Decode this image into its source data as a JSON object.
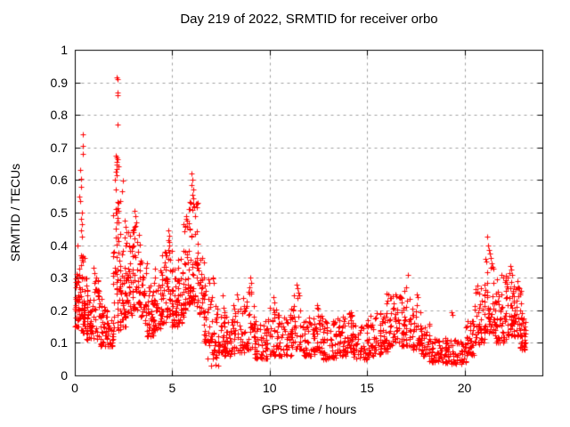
{
  "chart_data": {
    "type": "scatter",
    "title": "Day 219 of 2022, SRMTID for receiver orbo",
    "xlabel": "GPS time / hours",
    "ylabel": "SRMTID / TECUs",
    "xlim": [
      0,
      24
    ],
    "ylim": [
      0,
      1
    ],
    "xticks": [
      [
        0,
        "0"
      ],
      [
        5,
        "5"
      ],
      [
        10,
        "10"
      ],
      [
        15,
        "15"
      ],
      [
        20,
        "20"
      ]
    ],
    "yticks": [
      [
        0,
        "0"
      ],
      [
        0.1,
        "0.1"
      ],
      [
        0.2,
        "0.2"
      ],
      [
        0.3,
        "0.3"
      ],
      [
        0.4,
        "0.4"
      ],
      [
        0.5,
        "0.5"
      ],
      [
        0.6,
        "0.6"
      ],
      [
        0.7,
        "0.7"
      ],
      [
        0.8,
        "0.8"
      ],
      [
        0.9,
        "0.9"
      ],
      [
        1,
        "1"
      ]
    ],
    "grid": true,
    "legend": "none",
    "marker": "plus",
    "marker_color": "#ff0000",
    "grid_color": "#a0a0a0",
    "axis_color": "#000000",
    "background": "#ffffff",
    "prng_seed": 42,
    "series_points": [
      [
        0.41,
        0.74
      ],
      [
        0.41,
        0.705
      ],
      [
        0.42,
        0.68
      ],
      [
        0.27,
        0.63
      ],
      [
        0.3,
        0.605
      ],
      [
        0.32,
        0.58
      ],
      [
        0.25,
        0.55
      ],
      [
        0.28,
        0.535
      ],
      [
        0.35,
        0.5
      ],
      [
        0.3,
        0.48
      ],
      [
        0.38,
        0.465
      ],
      [
        0.33,
        0.445
      ],
      [
        0.36,
        0.425
      ],
      [
        0.98,
        0.33
      ],
      [
        1.02,
        0.315
      ],
      [
        1.08,
        0.3
      ],
      [
        2.17,
        0.915
      ],
      [
        2.2,
        0.91
      ],
      [
        2.18,
        0.87
      ],
      [
        2.21,
        0.862
      ],
      [
        2.19,
        0.77
      ],
      [
        2.12,
        0.675
      ],
      [
        2.16,
        0.67
      ],
      [
        2.2,
        0.664
      ],
      [
        2.13,
        0.656
      ],
      [
        2.17,
        0.648
      ],
      [
        2.22,
        0.643
      ],
      [
        2.15,
        0.635
      ],
      [
        2.1,
        0.625
      ],
      [
        2.14,
        0.615
      ],
      [
        2.05,
        0.6
      ],
      [
        2.47,
        0.598
      ],
      [
        2.12,
        0.57
      ],
      [
        2.4,
        0.565
      ],
      [
        2.25,
        0.53
      ],
      [
        2.08,
        0.51
      ],
      [
        2.1,
        0.5
      ],
      [
        2.57,
        0.475
      ],
      [
        2.62,
        0.455
      ],
      [
        2.66,
        0.44
      ],
      [
        3.05,
        0.505
      ],
      [
        3.1,
        0.49
      ],
      [
        3.14,
        0.47
      ],
      [
        3.08,
        0.455
      ],
      [
        4.82,
        0.445
      ],
      [
        4.86,
        0.43
      ],
      [
        4.8,
        0.415
      ],
      [
        4.84,
        0.4
      ],
      [
        5.7,
        0.49
      ],
      [
        5.74,
        0.475
      ],
      [
        5.65,
        0.46
      ],
      [
        5.78,
        0.455
      ],
      [
        6.0,
        0.62
      ],
      [
        6.04,
        0.6
      ],
      [
        5.98,
        0.585
      ],
      [
        6.07,
        0.57
      ],
      [
        6.02,
        0.555
      ],
      [
        6.1,
        0.545
      ],
      [
        5.95,
        0.53
      ],
      [
        6.13,
        0.52
      ],
      [
        6.05,
        0.508
      ],
      [
        7.1,
        0.3
      ],
      [
        7.15,
        0.285
      ],
      [
        7.6,
        0.245
      ],
      [
        8.3,
        0.25
      ],
      [
        8.35,
        0.235
      ],
      [
        9.0,
        0.3
      ],
      [
        9.04,
        0.285
      ],
      [
        8.95,
        0.27
      ],
      [
        10.2,
        0.24
      ],
      [
        10.25,
        0.225
      ],
      [
        11.38,
        0.28
      ],
      [
        11.42,
        0.268
      ],
      [
        11.46,
        0.255
      ],
      [
        12.45,
        0.215
      ],
      [
        12.5,
        0.205
      ],
      [
        13.3,
        0.16
      ],
      [
        14.15,
        0.195
      ],
      [
        14.2,
        0.185
      ],
      [
        15.5,
        0.19
      ],
      [
        16.1,
        0.25
      ],
      [
        16.16,
        0.238
      ],
      [
        16.45,
        0.25
      ],
      [
        16.9,
        0.26
      ],
      [
        17.1,
        0.31
      ],
      [
        17.0,
        0.27
      ],
      [
        17.55,
        0.25
      ],
      [
        17.6,
        0.24
      ],
      [
        19.35,
        0.195
      ],
      [
        19.4,
        0.185
      ],
      [
        21.16,
        0.425
      ],
      [
        21.2,
        0.4
      ],
      [
        21.26,
        0.385
      ],
      [
        21.3,
        0.374
      ],
      [
        21.35,
        0.36
      ],
      [
        21.12,
        0.35
      ],
      [
        21.4,
        0.345
      ],
      [
        21.45,
        0.334
      ],
      [
        21.9,
        0.31
      ],
      [
        22.0,
        0.3
      ],
      [
        22.3,
        0.315
      ],
      [
        22.35,
        0.335
      ],
      [
        22.4,
        0.325
      ],
      [
        22.45,
        0.31
      ],
      [
        22.7,
        0.29
      ],
      [
        22.75,
        0.27
      ],
      [
        22.85,
        0.25
      ],
      [
        22.9,
        0.22
      ],
      [
        22.95,
        0.19
      ],
      [
        23.0,
        0.16
      ],
      [
        23.05,
        0.13
      ],
      [
        23.1,
        0.11
      ]
    ],
    "density_bands": [
      [
        0.0,
        0.2,
        0.15,
        0.33,
        22
      ],
      [
        0.1,
        0.5,
        0.17,
        0.4,
        45
      ],
      [
        0.3,
        0.7,
        0.13,
        0.3,
        35
      ],
      [
        0.6,
        1.0,
        0.11,
        0.26,
        32
      ],
      [
        0.9,
        1.4,
        0.11,
        0.3,
        35
      ],
      [
        1.3,
        1.7,
        0.09,
        0.22,
        35
      ],
      [
        1.6,
        2.0,
        0.09,
        0.2,
        30
      ],
      [
        1.95,
        2.35,
        0.14,
        0.55,
        55
      ],
      [
        2.3,
        2.6,
        0.15,
        0.45,
        35
      ],
      [
        2.55,
        3.0,
        0.18,
        0.44,
        45
      ],
      [
        2.95,
        3.35,
        0.2,
        0.46,
        40
      ],
      [
        3.3,
        3.7,
        0.16,
        0.36,
        35
      ],
      [
        3.6,
        4.1,
        0.12,
        0.28,
        40
      ],
      [
        4.0,
        4.45,
        0.14,
        0.33,
        35
      ],
      [
        4.4,
        4.75,
        0.16,
        0.38,
        35
      ],
      [
        4.7,
        5.0,
        0.18,
        0.42,
        30
      ],
      [
        4.95,
        5.35,
        0.15,
        0.35,
        35
      ],
      [
        5.3,
        5.6,
        0.16,
        0.36,
        30
      ],
      [
        5.55,
        5.85,
        0.2,
        0.48,
        30
      ],
      [
        5.8,
        6.3,
        0.22,
        0.55,
        55
      ],
      [
        6.25,
        6.65,
        0.18,
        0.38,
        35
      ],
      [
        6.6,
        7.1,
        0.1,
        0.3,
        40
      ],
      [
        6.8,
        7.4,
        0.03,
        0.12,
        18
      ],
      [
        7.1,
        7.7,
        0.07,
        0.22,
        40
      ],
      [
        7.6,
        8.2,
        0.06,
        0.2,
        42
      ],
      [
        8.1,
        8.7,
        0.07,
        0.22,
        40
      ],
      [
        8.6,
        9.25,
        0.08,
        0.26,
        45
      ],
      [
        9.2,
        9.9,
        0.05,
        0.17,
        48
      ],
      [
        9.8,
        10.45,
        0.06,
        0.21,
        42
      ],
      [
        10.4,
        11.1,
        0.06,
        0.19,
        48
      ],
      [
        11.05,
        11.65,
        0.08,
        0.25,
        40
      ],
      [
        11.6,
        12.3,
        0.06,
        0.18,
        45
      ],
      [
        12.25,
        12.75,
        0.07,
        0.21,
        38
      ],
      [
        12.7,
        13.4,
        0.05,
        0.17,
        48
      ],
      [
        13.35,
        14.0,
        0.06,
        0.18,
        45
      ],
      [
        13.95,
        14.35,
        0.07,
        0.2,
        32
      ],
      [
        14.3,
        15.1,
        0.05,
        0.16,
        50
      ],
      [
        15.0,
        15.7,
        0.06,
        0.19,
        45
      ],
      [
        15.65,
        16.05,
        0.07,
        0.21,
        32
      ],
      [
        16.0,
        16.55,
        0.09,
        0.26,
        40
      ],
      [
        16.5,
        17.25,
        0.09,
        0.25,
        50
      ],
      [
        17.2,
        17.8,
        0.08,
        0.22,
        40
      ],
      [
        17.75,
        18.25,
        0.06,
        0.16,
        35
      ],
      [
        18.2,
        19.1,
        0.04,
        0.12,
        55
      ],
      [
        19.0,
        20.1,
        0.035,
        0.11,
        62
      ],
      [
        20.05,
        20.55,
        0.06,
        0.17,
        38
      ],
      [
        20.5,
        21.05,
        0.09,
        0.28,
        42
      ],
      [
        21.0,
        21.6,
        0.13,
        0.36,
        50
      ],
      [
        21.55,
        22.15,
        0.1,
        0.3,
        48
      ],
      [
        22.1,
        22.55,
        0.12,
        0.31,
        42
      ],
      [
        22.5,
        22.9,
        0.12,
        0.28,
        38
      ],
      [
        22.85,
        23.15,
        0.08,
        0.2,
        26
      ]
    ]
  }
}
